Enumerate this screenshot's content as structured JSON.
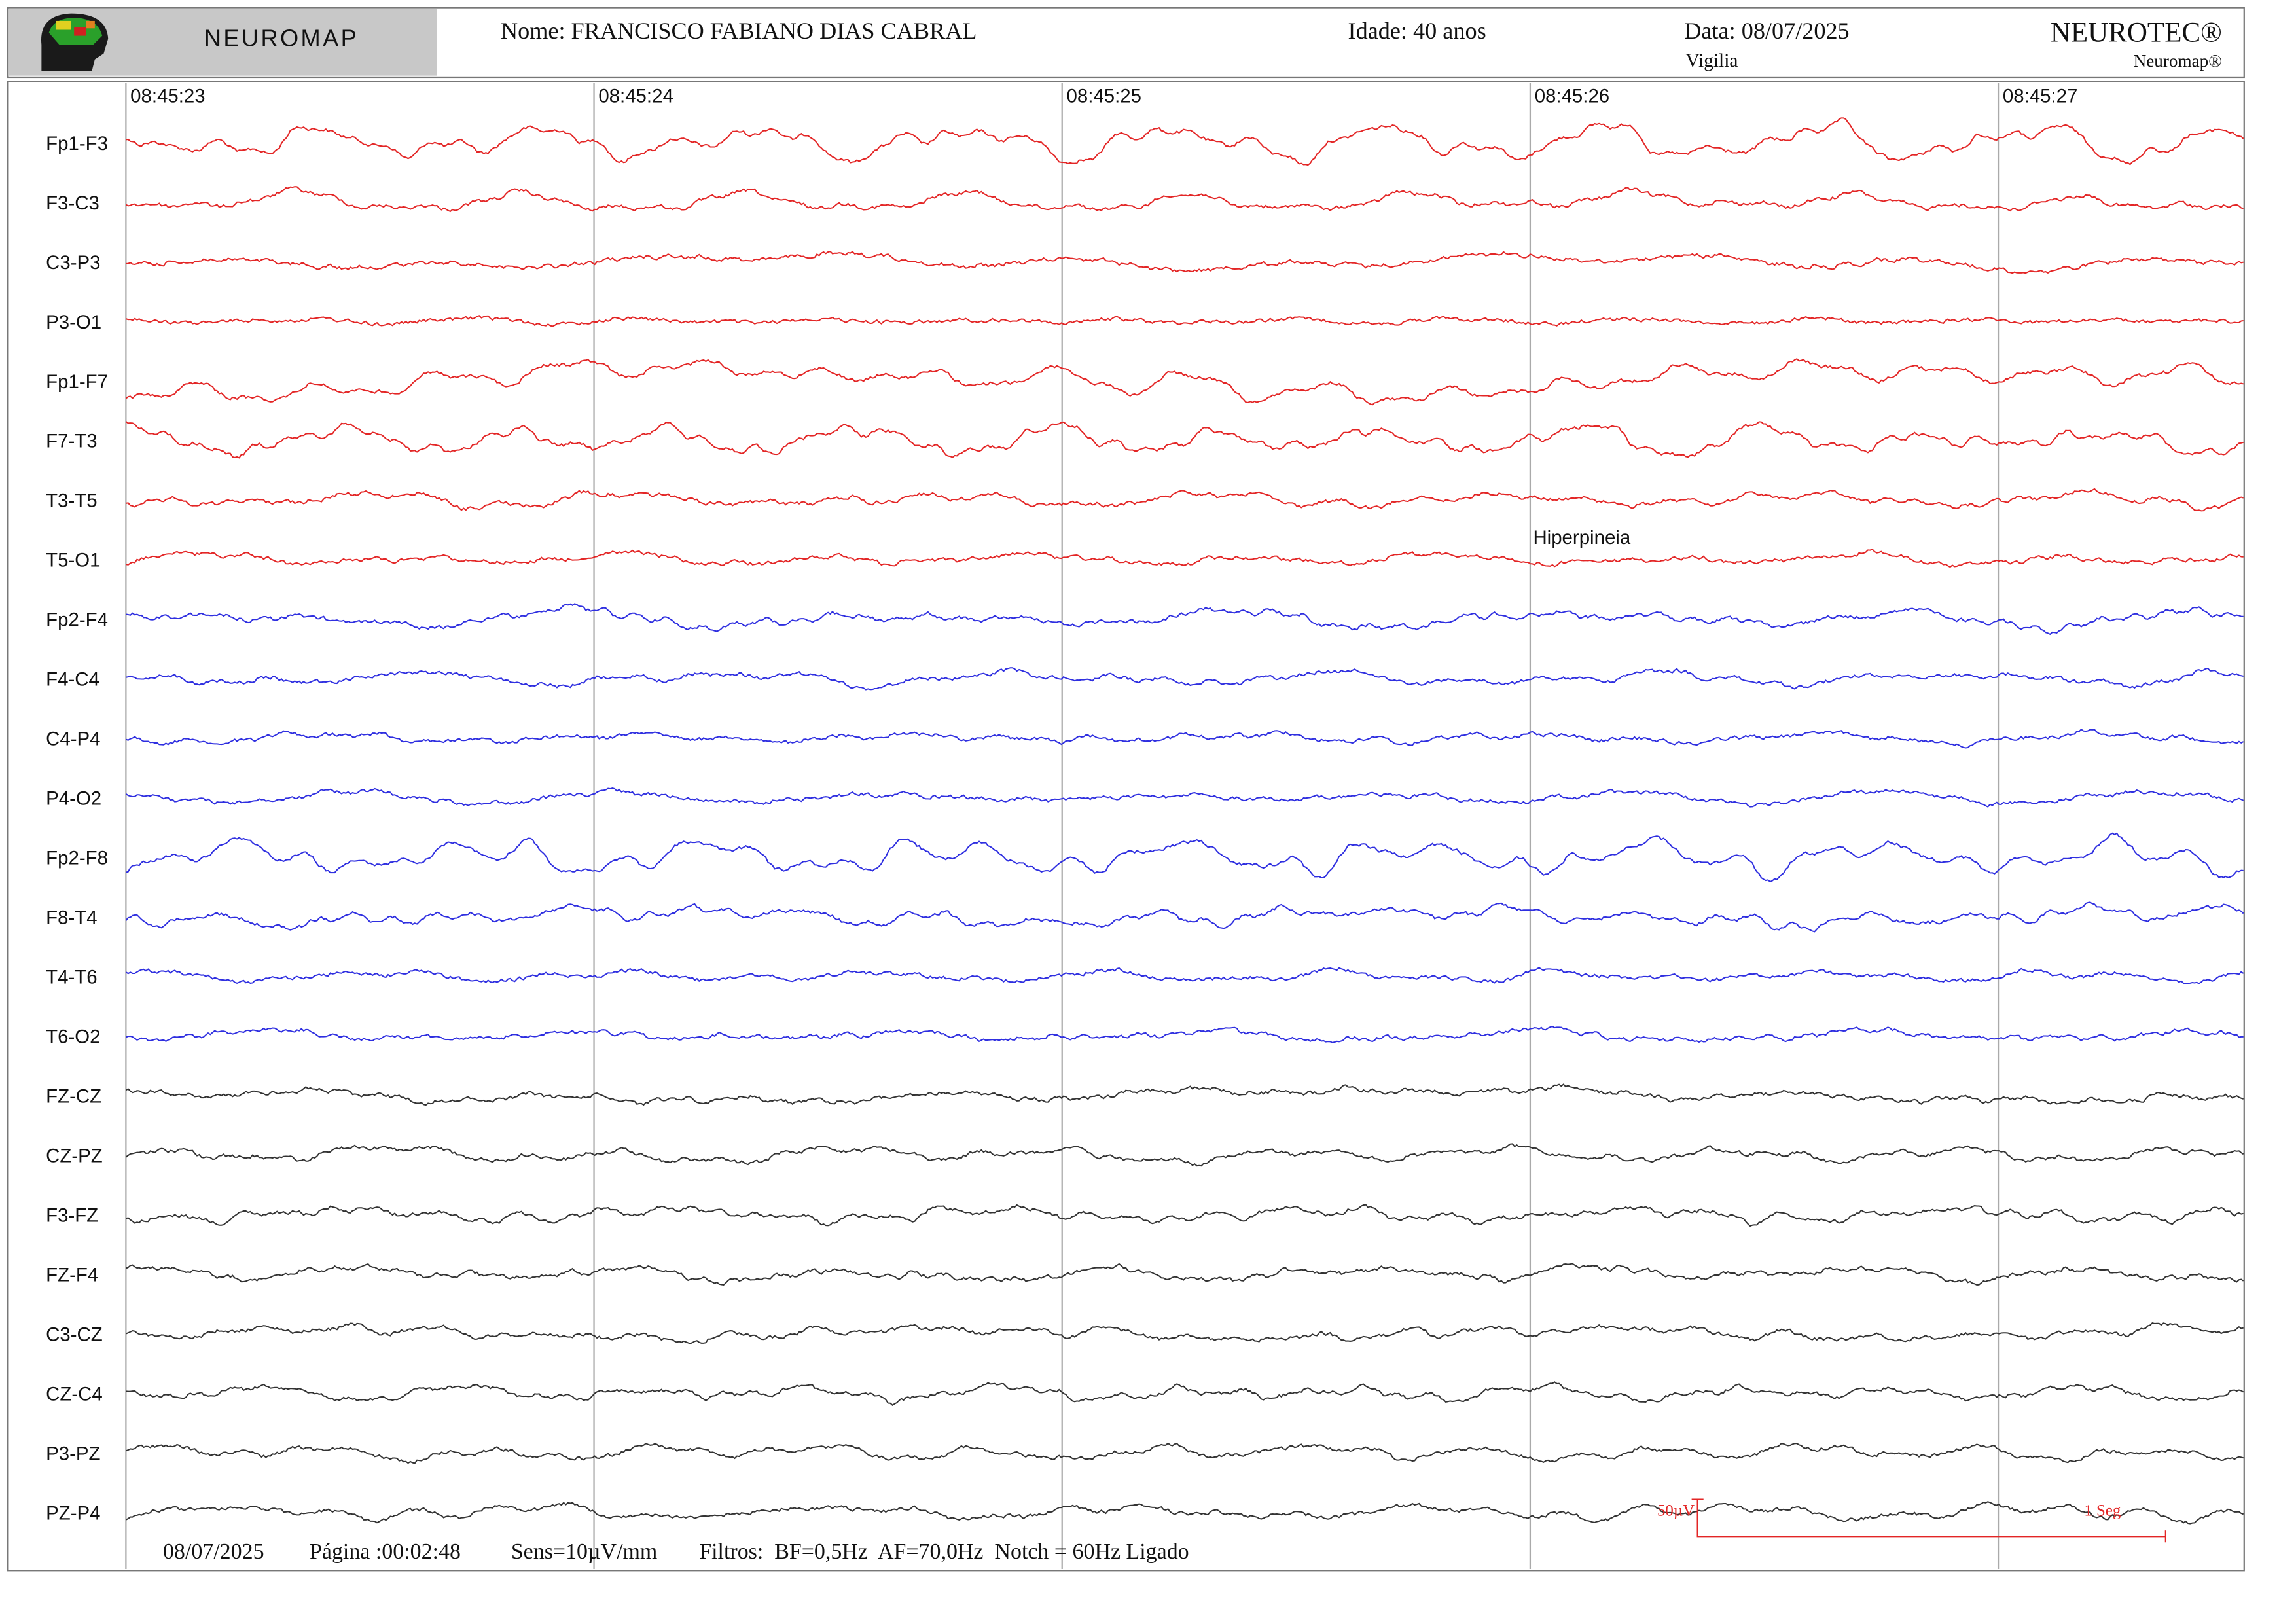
{
  "header": {
    "logo_text": "NEUROMAP",
    "patient": "Nome: FRANCISCO FABIANO DIAS CABRAL",
    "age": "Idade: 40 anos",
    "date": "Data: 08/07/2025",
    "state": "Vigilia",
    "brand": "NEUROTEC®",
    "product": "Neuromap®"
  },
  "timestamps": [
    "08:45:23",
    "08:45:24",
    "08:45:25",
    "08:45:26",
    "08:45:27"
  ],
  "channels": [
    {
      "label": "Fp1-F3",
      "color": "#e32626"
    },
    {
      "label": "F3-C3",
      "color": "#e32626"
    },
    {
      "label": "C3-P3",
      "color": "#e32626"
    },
    {
      "label": "P3-O1",
      "color": "#e32626"
    },
    {
      "label": "Fp1-F7",
      "color": "#e32626"
    },
    {
      "label": "F7-T3",
      "color": "#e32626"
    },
    {
      "label": "T3-T5",
      "color": "#e32626"
    },
    {
      "label": "T5-O1",
      "color": "#e32626"
    },
    {
      "label": "Fp2-F4",
      "color": "#2f2fe0"
    },
    {
      "label": "F4-C4",
      "color": "#2f2fe0"
    },
    {
      "label": "C4-P4",
      "color": "#2f2fe0"
    },
    {
      "label": "P4-O2",
      "color": "#2f2fe0"
    },
    {
      "label": "Fp2-F8",
      "color": "#2f2fe0"
    },
    {
      "label": "F8-T4",
      "color": "#2f2fe0"
    },
    {
      "label": "T4-T6",
      "color": "#2f2fe0"
    },
    {
      "label": "T6-O2",
      "color": "#2f2fe0"
    },
    {
      "label": "FZ-CZ",
      "color": "#333333"
    },
    {
      "label": "CZ-PZ",
      "color": "#333333"
    },
    {
      "label": "F3-FZ",
      "color": "#333333"
    },
    {
      "label": "FZ-F4",
      "color": "#333333"
    },
    {
      "label": "C3-CZ",
      "color": "#333333"
    },
    {
      "label": "CZ-C4",
      "color": "#333333"
    },
    {
      "label": "P3-PZ",
      "color": "#333333"
    },
    {
      "label": "PZ-P4",
      "color": "#333333"
    }
  ],
  "annotation": "Hiperpineia",
  "calibration": {
    "amplitude": "50µV",
    "time": "1 Seg"
  },
  "footer": {
    "date": "08/07/2025",
    "page": "Página :00:02:48",
    "sens": "Sens=10µV/mm",
    "filters": "Filtros:  BF=0,5Hz  AF=70,0Hz  Notch = 60Hz Ligado"
  }
}
